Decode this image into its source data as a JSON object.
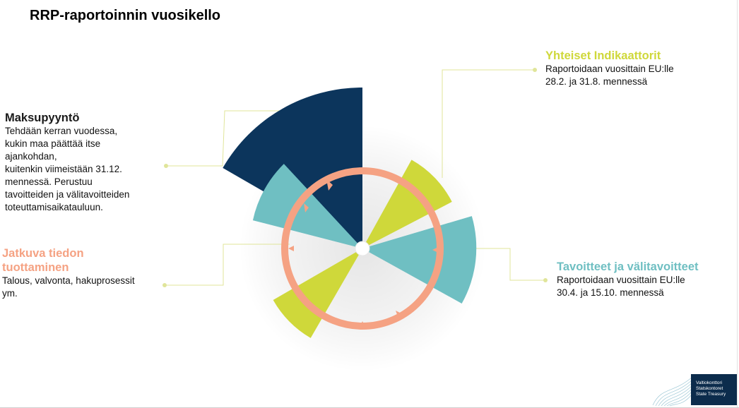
{
  "title": "RRP-raportoinnin vuosikello",
  "colors": {
    "navy": "#0c355c",
    "teal": "#6fbfc2",
    "lime": "#cfd83a",
    "salmon": "#f5a283",
    "leader": "#e0e59a"
  },
  "callouts": {
    "maksupyynto": {
      "title": "Maksupyyntö",
      "text": "Tehdään kerran vuodessa,\nkukin maa päättää itse\najankohdan,\nkuitenkin viimeistään 31.12.\nmennessä. Perustuu\ntavoitteiden ja välitavoitteiden\ntoteuttamisaikatauluun."
    },
    "jatkuva": {
      "title": "Jatkuva tiedon\ntuottaminen",
      "text": "Talous, valvonta, hakuprosessit\nym."
    },
    "yhteiset": {
      "title": "Yhteiset Indikaattorit",
      "text": "Raportoidaan vuosittain EU:lle\n28.2. ja 31.8. mennessä"
    },
    "tavoitteet": {
      "title": "Tavoitteet ja välitavoitteet",
      "text": "Raportoidaan vuosittain EU:lle\n30.4. ja 15.10. mennessä"
    }
  },
  "logo": {
    "text": "Valtiokonttori\nStatskontoret\nState Treasury",
    "icon": "wave-lines-icon"
  }
}
